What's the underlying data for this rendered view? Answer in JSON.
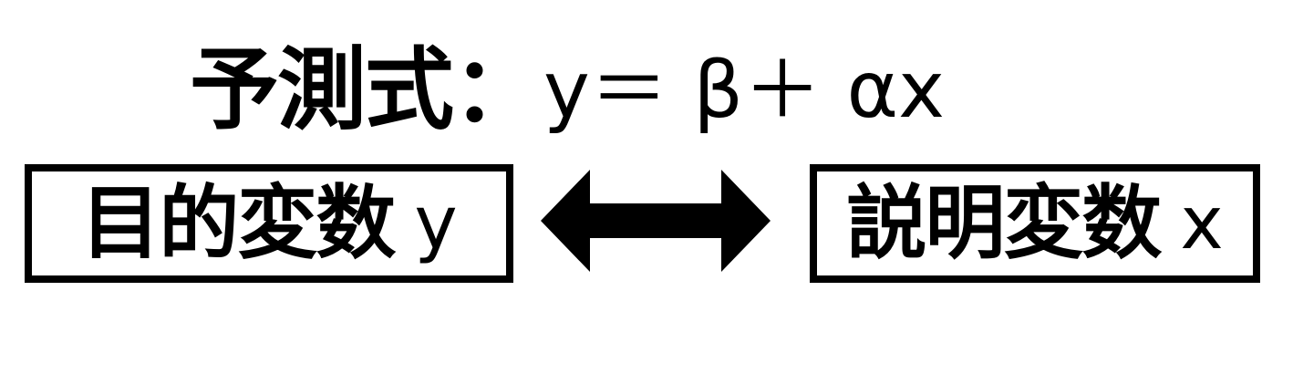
{
  "formula": {
    "label": "予測式：",
    "expression": "y＝ β＋ αx"
  },
  "target_box": {
    "term": "目的変数",
    "variable": "y"
  },
  "explanatory_box": {
    "term": "説明変数",
    "variable": "x"
  },
  "arrow": {
    "direction": "bidirectional",
    "color": "#000000"
  }
}
